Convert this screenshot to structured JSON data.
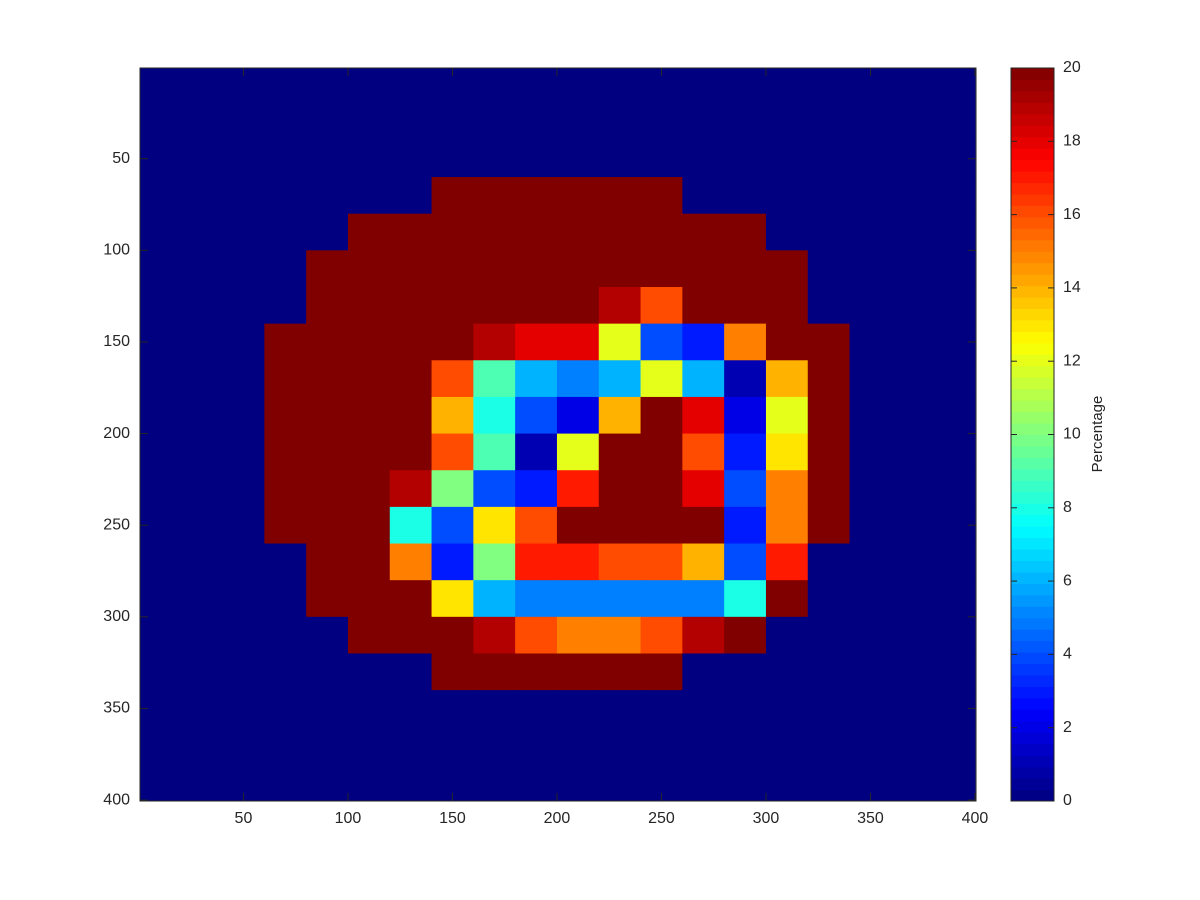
{
  "chart_data": {
    "type": "heatmap",
    "x": [
      10,
      30,
      50,
      70,
      90,
      110,
      130,
      150,
      170,
      190,
      210,
      230,
      250,
      270,
      290,
      310,
      330,
      350,
      370,
      390
    ],
    "y": [
      10,
      30,
      50,
      70,
      90,
      110,
      130,
      150,
      170,
      190,
      210,
      230,
      250,
      270,
      290,
      310,
      330,
      350,
      370,
      390
    ],
    "values": [
      [
        0,
        0,
        0,
        0,
        0,
        0,
        0,
        0,
        0,
        0,
        0,
        0,
        0,
        0,
        0,
        0,
        0,
        0,
        0,
        0
      ],
      [
        0,
        0,
        0,
        0,
        0,
        0,
        0,
        0,
        0,
        0,
        0,
        0,
        0,
        0,
        0,
        0,
        0,
        0,
        0,
        0
      ],
      [
        0,
        0,
        0,
        0,
        0,
        0,
        0,
        0,
        0,
        0,
        0,
        0,
        0,
        0,
        0,
        0,
        0,
        0,
        0,
        0
      ],
      [
        0,
        0,
        0,
        0,
        0,
        0,
        0,
        20,
        20,
        20,
        20,
        20,
        20,
        0,
        0,
        0,
        0,
        0,
        0,
        0
      ],
      [
        0,
        0,
        0,
        0,
        0,
        20,
        20,
        20,
        20,
        20,
        20,
        20,
        20,
        20,
        20,
        0,
        0,
        0,
        0,
        0
      ],
      [
        0,
        0,
        0,
        0,
        20,
        20,
        20,
        20,
        20,
        20,
        20,
        20,
        20,
        20,
        20,
        20,
        0,
        0,
        0,
        0
      ],
      [
        0,
        0,
        0,
        0,
        20,
        20,
        20,
        20,
        20,
        20,
        20,
        19,
        16,
        20,
        20,
        20,
        0,
        0,
        0,
        0
      ],
      [
        0,
        0,
        0,
        20,
        20,
        20,
        20,
        20,
        19,
        18,
        18,
        12,
        4,
        3,
        15,
        20,
        20,
        0,
        0,
        0
      ],
      [
        0,
        0,
        0,
        20,
        20,
        20,
        20,
        16,
        9,
        6,
        5,
        6,
        12,
        6,
        1,
        14,
        20,
        0,
        0,
        0
      ],
      [
        0,
        0,
        0,
        20,
        20,
        20,
        20,
        14,
        8,
        4,
        2,
        14,
        20,
        18,
        2,
        12,
        20,
        0,
        0,
        0
      ],
      [
        0,
        0,
        0,
        20,
        20,
        20,
        20,
        16,
        9,
        1,
        12,
        20,
        20,
        16,
        3,
        13,
        20,
        0,
        0,
        0
      ],
      [
        0,
        0,
        0,
        20,
        20,
        20,
        19,
        10,
        4,
        3,
        17,
        20,
        20,
        18,
        4,
        15,
        20,
        0,
        0,
        0
      ],
      [
        0,
        0,
        0,
        20,
        20,
        20,
        8,
        4,
        13,
        16,
        20,
        20,
        20,
        20,
        3,
        15,
        20,
        0,
        0,
        0
      ],
      [
        0,
        0,
        0,
        0,
        20,
        20,
        15,
        3,
        10,
        17,
        17,
        16,
        16,
        14,
        4,
        17,
        0,
        0,
        0,
        0
      ],
      [
        0,
        0,
        0,
        0,
        20,
        20,
        20,
        13,
        6,
        5,
        5,
        5,
        5,
        5,
        8,
        20,
        0,
        0,
        0,
        0
      ],
      [
        0,
        0,
        0,
        0,
        0,
        20,
        20,
        20,
        19,
        16,
        15,
        15,
        16,
        19,
        20,
        0,
        0,
        0,
        0,
        0
      ],
      [
        0,
        0,
        0,
        0,
        0,
        0,
        0,
        20,
        20,
        20,
        20,
        20,
        20,
        0,
        0,
        0,
        0,
        0,
        0,
        0
      ],
      [
        0,
        0,
        0,
        0,
        0,
        0,
        0,
        0,
        0,
        0,
        0,
        0,
        0,
        0,
        0,
        0,
        0,
        0,
        0,
        0
      ],
      [
        0,
        0,
        0,
        0,
        0,
        0,
        0,
        0,
        0,
        0,
        0,
        0,
        0,
        0,
        0,
        0,
        0,
        0,
        0,
        0
      ],
      [
        0,
        0,
        0,
        0,
        0,
        0,
        0,
        0,
        0,
        0,
        0,
        0,
        0,
        0,
        0,
        0,
        0,
        0,
        0,
        0
      ]
    ],
    "xlim": [
      0.5,
      400.5
    ],
    "ylim": [
      0.5,
      400.5
    ],
    "y_reversed": true,
    "xticks": [
      50,
      100,
      150,
      200,
      250,
      300,
      350,
      400
    ],
    "yticks": [
      50,
      100,
      150,
      200,
      250,
      300,
      350,
      400
    ],
    "colormap": "jet",
    "colorbar": {
      "label": "Percentage",
      "lim": [
        0,
        20
      ],
      "ticks": [
        0,
        2,
        4,
        6,
        8,
        10,
        12,
        14,
        16,
        18,
        20
      ]
    }
  }
}
